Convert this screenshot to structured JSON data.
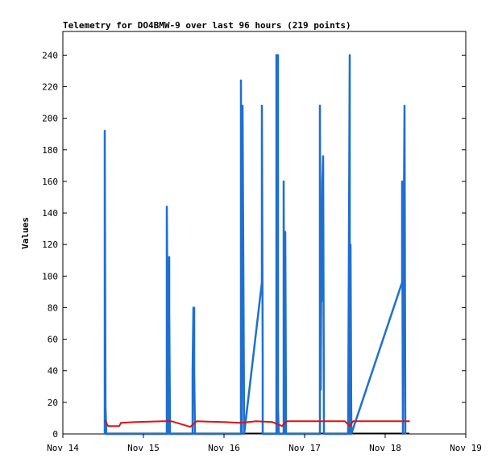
{
  "chart_data": {
    "type": "line",
    "title": "Telemetry for DO4BMW-9 over last 96 hours (219 points)",
    "xlabel": "",
    "ylabel": "Values",
    "x_tick_labels": [
      "Nov 14",
      "Nov 15",
      "Nov 16",
      "Nov 17",
      "Nov 18",
      "Nov 19"
    ],
    "x_range": [
      "Nov 14",
      "Nov 19"
    ],
    "x_unit": "days",
    "ylim": [
      0,
      255
    ],
    "y_ticks": [
      0,
      20,
      40,
      60,
      80,
      100,
      120,
      140,
      160,
      180,
      200,
      220,
      240
    ],
    "grid": false,
    "legend": "none",
    "colors": {
      "blue_series": "#1f6fd1",
      "red_series": "#e01010",
      "baseline": "#000000"
    },
    "series": [
      {
        "color": "#1f6fd1",
        "points": [
          [
            0.52,
            0
          ],
          [
            0.52,
            192
          ],
          [
            0.53,
            0
          ],
          [
            0.53,
            16
          ],
          [
            0.54,
            0
          ],
          [
            1.29,
            0
          ],
          [
            1.29,
            144
          ],
          [
            1.3,
            72
          ],
          [
            1.31,
            0
          ],
          [
            1.32,
            112
          ],
          [
            1.32,
            80
          ],
          [
            1.33,
            0
          ],
          [
            1.61,
            0
          ],
          [
            1.61,
            40
          ],
          [
            1.62,
            80
          ],
          [
            1.63,
            80
          ],
          [
            1.63,
            40
          ],
          [
            1.64,
            0
          ],
          [
            2.21,
            0
          ],
          [
            2.21,
            224
          ],
          [
            2.22,
            0
          ],
          [
            2.23,
            208
          ],
          [
            2.24,
            104
          ],
          [
            2.25,
            0
          ],
          [
            2.47,
            96
          ],
          [
            2.47,
            208
          ],
          [
            2.48,
            48
          ],
          [
            2.48,
            0
          ],
          [
            2.65,
            0
          ],
          [
            2.65,
            240
          ],
          [
            2.66,
            0
          ],
          [
            2.67,
            240
          ],
          [
            2.67,
            16
          ],
          [
            2.68,
            0
          ],
          [
            2.74,
            0
          ],
          [
            2.74,
            160
          ],
          [
            2.75,
            0
          ],
          [
            2.76,
            128
          ],
          [
            2.77,
            0
          ],
          [
            3.19,
            0
          ],
          [
            3.19,
            208
          ],
          [
            3.2,
            28
          ],
          [
            3.21,
            128
          ],
          [
            3.21,
            84
          ],
          [
            3.22,
            160
          ],
          [
            3.23,
            176
          ],
          [
            3.24,
            0
          ],
          [
            3.54,
            0
          ],
          [
            3.55,
            120
          ],
          [
            3.56,
            240
          ],
          [
            3.56,
            0
          ],
          [
            3.57,
            120
          ],
          [
            3.58,
            0
          ],
          [
            4.21,
            96
          ],
          [
            4.21,
            160
          ],
          [
            4.22,
            0
          ],
          [
            4.23,
            128
          ],
          [
            4.24,
            208
          ],
          [
            4.25,
            0
          ]
        ]
      },
      {
        "color": "#e01010",
        "points": [
          [
            0.52,
            8
          ],
          [
            0.53,
            8
          ],
          [
            0.56,
            5
          ],
          [
            0.7,
            5
          ],
          [
            0.72,
            7
          ],
          [
            0.9,
            7.5
          ],
          [
            1.25,
            8
          ],
          [
            1.35,
            8
          ],
          [
            1.58,
            4.5
          ],
          [
            1.66,
            8
          ],
          [
            2.0,
            7.5
          ],
          [
            2.2,
            7
          ],
          [
            2.4,
            8
          ],
          [
            2.6,
            7.5
          ],
          [
            2.72,
            5
          ],
          [
            2.78,
            8
          ],
          [
            3.2,
            8
          ],
          [
            3.5,
            8
          ],
          [
            3.56,
            5
          ],
          [
            3.6,
            8
          ],
          [
            4.0,
            8
          ],
          [
            4.3,
            8
          ]
        ]
      }
    ]
  }
}
